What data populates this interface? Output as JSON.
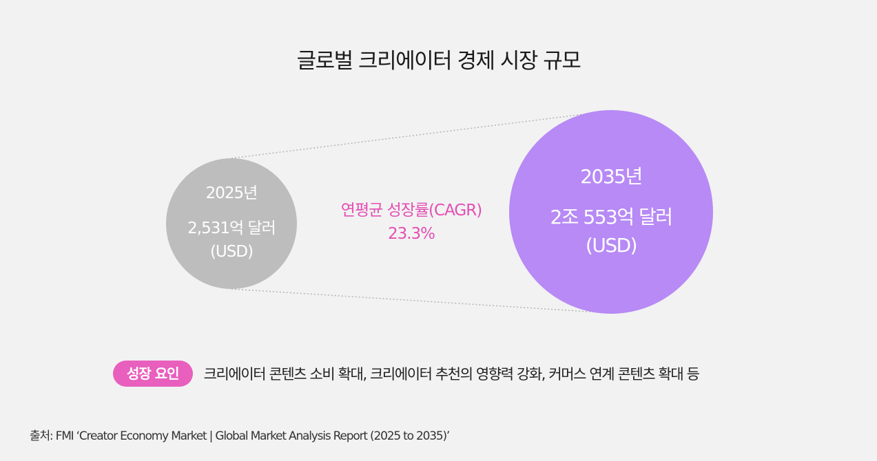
{
  "title": "글로벌 크리에이터 경제 시장 규모",
  "start": {
    "year": "2025년",
    "amount_line1": "2,531억 달러",
    "amount_line2": "(USD)"
  },
  "cagr": {
    "label": "연평균 성장률(CAGR)",
    "value": "23.3%"
  },
  "end": {
    "year": "2035년",
    "amount_line1": "2조 553억 달러",
    "amount_line2": "(USD)"
  },
  "growth_factors": {
    "badge": "성장 요인",
    "text": "크리에이터 콘텐츠 소비 확대, 크리에이터 추천의 영향력 강화, 커머스 연계 콘텐츠 확대 등"
  },
  "source": "출처: FMI ‘Creator Economy Market | Global Market Analysis Report (2025 to 2035)’",
  "colors": {
    "background": "#f2f2f2",
    "start_circle": "#bdbdbd",
    "end_circle": "#b78af5",
    "accent_pink": "#e34fb4",
    "badge_pink": "#e85fbd"
  }
}
